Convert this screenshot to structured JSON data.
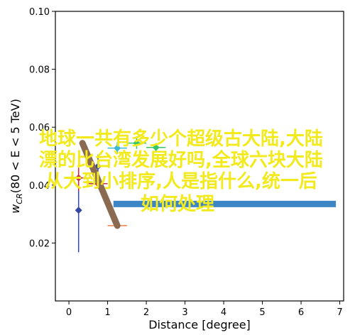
{
  "chart_data": {
    "type": "scatter",
    "xlabel": "Distance [degree]",
    "ylabel_main": "w",
    "ylabel_sub": "CR",
    "ylabel_rest": "(80 < E < 5 TeV)",
    "xlim": [
      -0.35,
      7.1
    ],
    "ylim": [
      0.0,
      0.1
    ],
    "x_ticks": [
      0,
      1,
      2,
      3,
      4,
      5,
      6,
      7
    ],
    "y_ticks": [
      0.02,
      0.04,
      0.06,
      0.08,
      0.1
    ],
    "y_tick_labels": [
      "0.02",
      "0.04",
      "0.06",
      "0.08",
      "0.10"
    ],
    "grid": false,
    "reference_band": {
      "y": 0.0335,
      "x_range": [
        1.15,
        6.9
      ],
      "color": "#3d86c6"
    },
    "series": [
      {
        "color": "#3548a6",
        "points": [
          {
            "x": 0.25,
            "y": 0.0313,
            "yerr": 0.0145
          },
          {
            "x": 0.75,
            "y": 0.0465,
            "yerr": 0.004
          }
        ]
      },
      {
        "color": "#c62d48",
        "points": [
          {
            "x": 0.25,
            "y": 0.0425,
            "yerr": 0.0045,
            "xerr": 0.25
          },
          {
            "x": 0.75,
            "y": 0.0405,
            "yerr": 0.0012,
            "xerr": 0.25
          }
        ]
      },
      {
        "color": "#3ab8d4",
        "points": [
          {
            "x": 1.25,
            "y": 0.0528,
            "yerr": 0.002,
            "xerr": 0.25
          }
        ]
      },
      {
        "color": "#36c46a",
        "points": [
          {
            "x": 1.75,
            "y": 0.0545,
            "yerr": 0.002,
            "xerr": 0.25
          },
          {
            "x": 2.25,
            "y": 0.053,
            "yerr": 0.0015,
            "xerr": 0.25
          }
        ]
      },
      {
        "color": "#f07d3c",
        "points": [
          {
            "x": 1.25,
            "y": 0.026,
            "yerr": 0.0005,
            "xerr": 0.25
          }
        ]
      }
    ],
    "connector": {
      "from": {
        "x": 0.35,
        "y": 0.0545
      },
      "to": {
        "x": 1.25,
        "y": 0.026
      },
      "color": "#8b6a52"
    }
  },
  "overlay": {
    "lines": [
      "地球一共有多少个超级古大陆,大陆",
      "漂的比台湾发展好吗,全球六块大陆",
      "从大到小排序,人是指什么,统一后",
      "如何处理"
    ]
  }
}
